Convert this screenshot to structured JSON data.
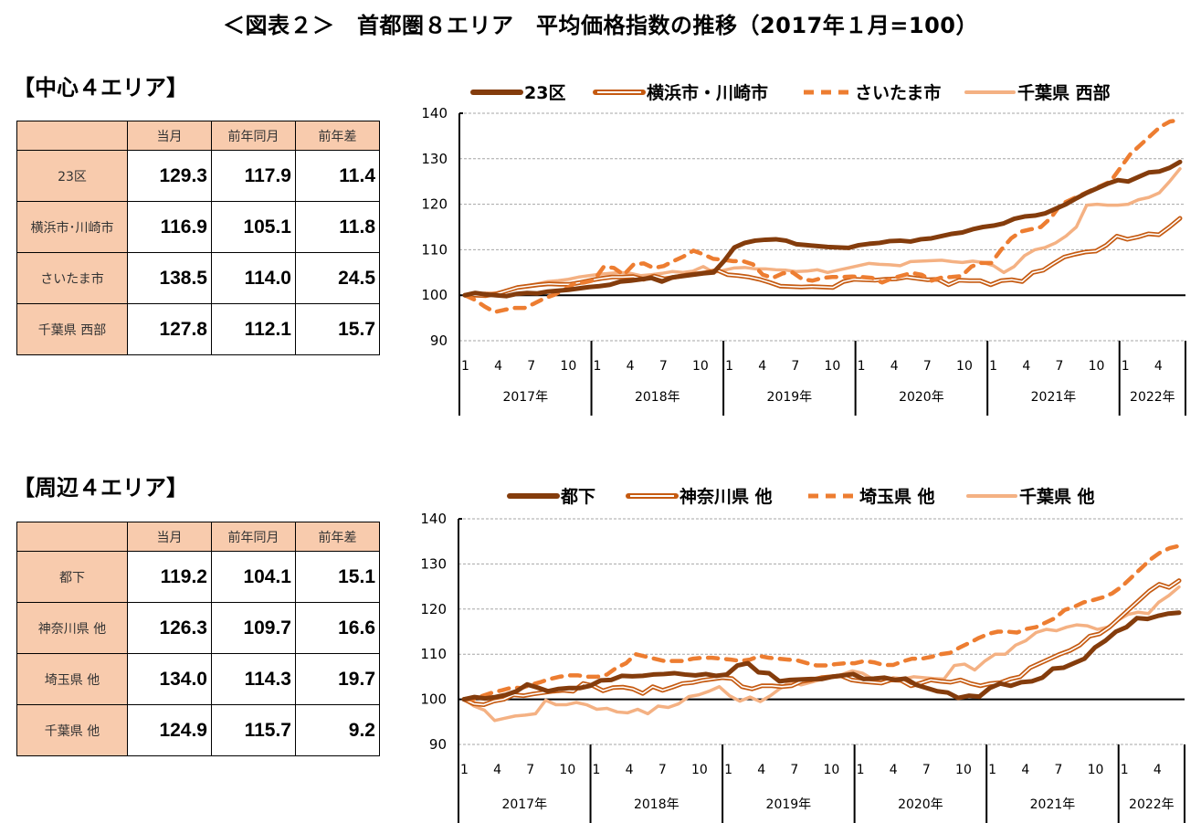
{
  "title": "＜図表２＞　首都圏８エリア　平均価格指数の推移（2017年１月=100）",
  "sections": [
    {
      "heading": "【中心４エリア】",
      "table": {
        "columns": [
          "",
          "当月",
          "前年同月",
          "前年差"
        ],
        "rows": [
          {
            "area": "23区",
            "current": "129.3",
            "prev_year": "117.9",
            "diff": "11.4"
          },
          {
            "area": "横浜市･川崎市",
            "current": "116.9",
            "prev_year": "105.1",
            "diff": "11.8"
          },
          {
            "area": "さいたま市",
            "current": "138.5",
            "prev_year": "114.0",
            "diff": "24.5"
          },
          {
            "area": "千葉県 西部",
            "current": "127.8",
            "prev_year": "112.1",
            "diff": "15.7"
          }
        ]
      }
    },
    {
      "heading": "【周辺４エリア】",
      "table": {
        "columns": [
          "",
          "当月",
          "前年同月",
          "前年差"
        ],
        "rows": [
          {
            "area": "都下",
            "current": "119.2",
            "prev_year": "104.1",
            "diff": "15.1"
          },
          {
            "area": "神奈川県 他",
            "current": "126.3",
            "prev_year": "109.7",
            "diff": "16.6"
          },
          {
            "area": "埼玉県 他",
            "current": "134.0",
            "prev_year": "114.3",
            "diff": "19.7"
          },
          {
            "area": "千葉県 他",
            "current": "124.9",
            "prev_year": "115.7",
            "diff": "9.2"
          }
        ]
      }
    }
  ],
  "colors": {
    "dark_brown": "#843c0c",
    "orange_double": "#c55a11",
    "orange_dash": "#ed7d31",
    "light_peach": "#f4b183",
    "table_header": "#f8cbad"
  },
  "chart_data": [
    {
      "type": "line",
      "title": "中心４エリア",
      "ylim": [
        90,
        140
      ],
      "yticks": [
        90,
        100,
        110,
        120,
        130,
        140
      ],
      "grid": true,
      "legend_position": "top",
      "month_ticks": [
        "1",
        "4",
        "7",
        "10",
        "1",
        "4",
        "7",
        "10",
        "1",
        "4",
        "7",
        "10",
        "1",
        "4",
        "7",
        "10",
        "1",
        "4",
        "7",
        "10",
        "1",
        "4"
      ],
      "year_labels": [
        "2017年",
        "2018年",
        "2019年",
        "2020年",
        "2021年",
        "2022年"
      ],
      "x_range": "2017-01 to 2022-06 (66 months)",
      "series": [
        {
          "name": "23区",
          "style": "thick-solid",
          "color": "#843c0c",
          "values": [
            100,
            100.5,
            100.2,
            100,
            99.8,
            100.3,
            100.5,
            100.4,
            100.8,
            101,
            101.2,
            101.5,
            101.8,
            102,
            102.3,
            103,
            103.2,
            103.5,
            103.8,
            103,
            103.9,
            104.2,
            104.5,
            104.8,
            105,
            107.5,
            110.5,
            111.5,
            112,
            112.2,
            112.3,
            112,
            111.2,
            111,
            110.8,
            110.6,
            110.5,
            110.4,
            111,
            111.3,
            111.5,
            111.9,
            112,
            111.8,
            112.3,
            112.5,
            113,
            113.5,
            113.8,
            114.5,
            115,
            115.3,
            115.8,
            116.8,
            117.3,
            117.5,
            118,
            119,
            120,
            121.3,
            122.5,
            123.5,
            124.5,
            125.3,
            125,
            126,
            127,
            127.2,
            128,
            129.3
          ]
        },
        {
          "name": "横浜市・川崎市",
          "style": "double-line",
          "color": "#c55a11",
          "values": [
            100,
            100,
            99.9,
            100.3,
            101,
            101.7,
            102,
            102.3,
            102.5,
            102.4,
            102.4,
            102.8,
            103.3,
            103.7,
            104,
            104,
            104.1,
            103.5,
            104.2,
            103.6,
            104,
            104.4,
            104.7,
            105,
            105.5,
            104.5,
            104.3,
            104,
            103.5,
            102.8,
            102,
            101.9,
            101.8,
            101.9,
            101.8,
            101.7,
            103,
            103.5,
            103.4,
            103.3,
            103.5,
            103.6,
            104,
            103.7,
            103.4,
            103.5,
            102.3,
            103.3,
            103.2,
            103.2,
            102.3,
            103.2,
            103.4,
            103,
            105,
            105.5,
            107,
            108.4,
            109,
            109.5,
            109.7,
            111,
            113,
            112.3,
            112.8,
            113.5,
            113.3,
            115,
            116.9
          ]
        },
        {
          "name": "さいたま市",
          "style": "dashed",
          "color": "#ed7d31",
          "values": [
            100,
            99,
            97.5,
            96.3,
            96.8,
            97.2,
            97.2,
            98.2,
            99.3,
            100.1,
            101.2,
            102.5,
            102.8,
            103.3,
            106.3,
            106,
            104.5,
            106.8,
            107,
            106,
            106.4,
            107.5,
            108.5,
            109.8,
            109,
            108,
            107.8,
            107.5,
            107.5,
            106.8,
            104.5,
            103.8,
            104.8,
            105,
            103.5,
            103.2,
            103.8,
            104,
            104,
            104.1,
            104,
            103.8,
            102.8,
            103.7,
            104.3,
            104.9,
            104.5,
            103.2,
            103.9,
            104,
            104.2,
            106.3,
            107.1,
            107.1,
            110,
            112.5,
            114,
            114.5,
            115,
            117,
            120,
            121,
            122,
            123,
            124,
            125,
            128,
            131,
            133,
            135,
            137,
            138.2,
            138.5
          ]
        },
        {
          "name": "千葉県 西部",
          "style": "solid",
          "color": "#f4b183",
          "values": [
            100,
            100.2,
            100.5,
            100.5,
            101,
            101.8,
            102.1,
            102.5,
            103,
            103.2,
            103.5,
            104,
            104.3,
            104.6,
            104.8,
            105,
            104.8,
            104.3,
            104.5,
            104.8,
            105.2,
            105,
            105.3,
            106.3,
            105,
            105.5,
            106,
            106.1,
            105.8,
            105.8,
            105.6,
            105.5,
            105.2,
            105.3,
            105.6,
            105,
            105.5,
            106,
            106.5,
            107,
            106.8,
            106.7,
            106.5,
            107.4,
            107.5,
            107.6,
            107.7,
            107.4,
            107.2,
            107.5,
            107.2,
            106.5,
            105,
            106.3,
            108.7,
            110,
            110.5,
            111.5,
            113,
            115,
            119.8,
            120,
            119.8,
            119.8,
            120,
            121,
            121.5,
            122.5,
            125,
            127.8
          ]
        }
      ]
    },
    {
      "type": "line",
      "title": "周辺４エリア",
      "ylim": [
        90,
        140
      ],
      "yticks": [
        90,
        100,
        110,
        120,
        130,
        140
      ],
      "grid": true,
      "legend_position": "top",
      "month_ticks": [
        "1",
        "4",
        "7",
        "10",
        "1",
        "4",
        "7",
        "10",
        "1",
        "4",
        "7",
        "10",
        "1",
        "4",
        "7",
        "10",
        "1",
        "4",
        "7",
        "10",
        "1",
        "4"
      ],
      "year_labels": [
        "2017年",
        "2018年",
        "2019年",
        "2020年",
        "2021年",
        "2022年"
      ],
      "x_range": "2017-01 to 2022-06 (66 months)",
      "series": [
        {
          "name": "都下",
          "style": "thick-solid",
          "color": "#843c0c",
          "values": [
            100,
            100.5,
            100.2,
            100.5,
            101,
            101.8,
            103.3,
            102.6,
            101.8,
            102.3,
            102.5,
            102.5,
            103,
            104.2,
            104.3,
            105.2,
            105.1,
            105.2,
            105.5,
            105.6,
            105.8,
            105.5,
            105.3,
            105.6,
            105.2,
            105.5,
            107.5,
            108,
            106,
            105.8,
            104,
            104.3,
            104.4,
            104.5,
            104.5,
            105,
            105.3,
            105.6,
            104.5,
            104.6,
            104.8,
            104.3,
            104.6,
            103.2,
            102.5,
            101.8,
            101.5,
            100.3,
            100.8,
            100.6,
            102.5,
            103.5,
            103,
            103.8,
            104,
            104.8,
            106.8,
            107,
            108,
            109,
            111.5,
            113,
            115,
            116,
            118,
            117.8,
            118.5,
            119,
            119.2
          ]
        },
        {
          "name": "神奈川県 他",
          "style": "double-line",
          "color": "#c55a11",
          "values": [
            100,
            99,
            98.8,
            99.6,
            100,
            101,
            100.8,
            101.2,
            101.5,
            101.8,
            102,
            101.8,
            103.5,
            103,
            101.9,
            102.6,
            102.7,
            102.3,
            101.3,
            102.8,
            102,
            102.7,
            103.5,
            103.7,
            104.2,
            104.5,
            104.8,
            104.6,
            102.8,
            102.3,
            103,
            103,
            102.8,
            103,
            104,
            104.3,
            104.8,
            105,
            105.2,
            104.3,
            104,
            103.8,
            103.6,
            104.3,
            104.2,
            103,
            103.6,
            104.3,
            104,
            103.8,
            104.3,
            103.5,
            103,
            103.5,
            103.7,
            104.5,
            105,
            107,
            108,
            109,
            110,
            110.8,
            112,
            114,
            114.5,
            116,
            118,
            120,
            122,
            124,
            125.5,
            124.8,
            126.3
          ]
        },
        {
          "name": "埼玉県 他",
          "style": "dashed",
          "color": "#ed7d31",
          "values": [
            100,
            100,
            100.8,
            101.5,
            102,
            102.6,
            102.5,
            103.2,
            103.8,
            104.5,
            105,
            105.3,
            105.3,
            105,
            105,
            105.5,
            107,
            108,
            110,
            109.5,
            109,
            108.5,
            108.5,
            108.5,
            109,
            109.2,
            109.2,
            109,
            108.8,
            108.5,
            108.8,
            109.6,
            109.2,
            109,
            108.8,
            108.6,
            108,
            107.5,
            107.5,
            107.8,
            108,
            108,
            108.5,
            108.2,
            107.6,
            107.6,
            108.4,
            109,
            109,
            109.4,
            110,
            110.3,
            111.5,
            112.5,
            113.6,
            114.5,
            115,
            115,
            114.8,
            115.6,
            116,
            117,
            118,
            119.8,
            120.5,
            121.5,
            122,
            122.6,
            123.5,
            125,
            127,
            129,
            131,
            132.5,
            133.5,
            134
          ]
        },
        {
          "name": "千葉県 他",
          "style": "solid",
          "color": "#f4b183",
          "values": [
            100,
            98.5,
            97.6,
            95.3,
            95.8,
            96.3,
            96.5,
            96.8,
            99.8,
            98.8,
            98.8,
            99.3,
            98.8,
            97.8,
            98,
            97.2,
            97,
            97.8,
            96.8,
            98.5,
            98.2,
            99,
            100.6,
            101,
            101.8,
            102.8,
            100.8,
            99.6,
            100.5,
            99.5,
            100.8,
            102.5,
            104,
            103.2,
            103.8,
            104.4,
            105,
            105.5,
            106.3,
            105.8,
            104.5,
            103.5,
            104.8,
            104.5,
            105,
            104.8,
            104.6,
            104.5,
            107.5,
            107.8,
            106.5,
            108.5,
            110,
            110,
            112,
            113,
            114.8,
            115.5,
            115.2,
            116,
            116.5,
            116.3,
            115.5,
            116,
            117.5,
            118.8,
            119.3,
            119,
            121.5,
            123,
            124.9
          ]
        }
      ]
    }
  ]
}
